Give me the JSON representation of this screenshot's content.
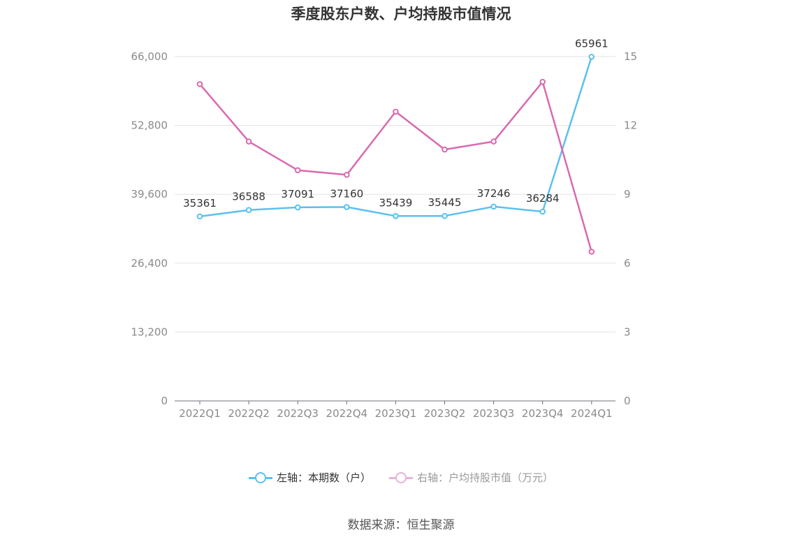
{
  "chart_data": {
    "type": "line",
    "title": "季度股东户数、户均持股市值情况",
    "categories": [
      "2022Q1",
      "2022Q2",
      "2022Q3",
      "2022Q4",
      "2023Q1",
      "2023Q2",
      "2023Q3",
      "2023Q4",
      "2024Q1"
    ],
    "series": [
      {
        "name": "左轴：本期数（户）",
        "axis": "left",
        "color": "#5bc0f0",
        "values": [
          35361,
          36588,
          37091,
          37160,
          35439,
          35445,
          37246,
          36284,
          65961
        ],
        "labels": [
          "35361",
          "36588",
          "37091",
          "37160",
          "35439",
          "35445",
          "37246",
          "36284",
          "65961"
        ]
      },
      {
        "name": "右轴：户均持股市值（万元）",
        "axis": "right",
        "color": "#d86bb0",
        "values": [
          13.8,
          11.3,
          10.05,
          9.85,
          12.6,
          10.95,
          11.3,
          13.9,
          6.5
        ]
      }
    ],
    "left_axis": {
      "ylim": [
        0,
        66000
      ],
      "ticks": [
        "0",
        "13,200",
        "26,400",
        "39,600",
        "52,800",
        "66,000"
      ]
    },
    "right_axis": {
      "ylim": [
        0,
        15
      ],
      "ticks": [
        "0",
        "3",
        "6",
        "9",
        "12",
        "15"
      ]
    },
    "grid": true,
    "legend_position": "bottom"
  },
  "source": "数据来源：恒生聚源"
}
